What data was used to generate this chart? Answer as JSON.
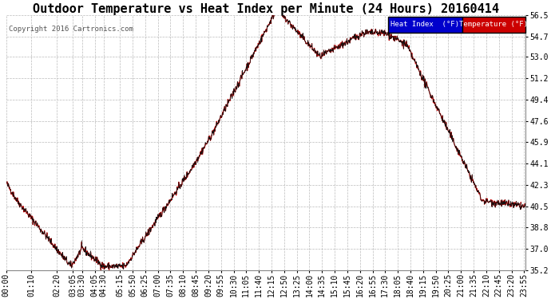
{
  "title": "Outdoor Temperature vs Heat Index per Minute (24 Hours) 20160414",
  "copyright": "Copyright 2016 Cartronics.com",
  "ylim": [
    35.2,
    56.5
  ],
  "yticks": [
    35.2,
    37.0,
    38.8,
    40.5,
    42.3,
    44.1,
    45.9,
    47.6,
    49.4,
    51.2,
    53.0,
    54.7,
    56.5
  ],
  "bg_color": "#ffffff",
  "plot_bg_color": "#ffffff",
  "grid_color": "#bbbbbb",
  "line_color": "#cc0000",
  "heat_index_legend_bg": "#0000cc",
  "temp_legend_bg": "#cc0000",
  "legend_text_color": "#ffffff",
  "title_fontsize": 11,
  "tick_fontsize": 7,
  "n_minutes": 1440,
  "x_tick_labels": [
    "00:00",
    "01:10",
    "02:20",
    "03:05",
    "03:30",
    "04:05",
    "04:30",
    "05:15",
    "05:50",
    "06:25",
    "07:00",
    "07:35",
    "08:10",
    "08:45",
    "09:20",
    "09:55",
    "10:30",
    "11:05",
    "11:40",
    "12:15",
    "12:50",
    "13:25",
    "14:00",
    "14:35",
    "15:10",
    "15:45",
    "16:20",
    "16:55",
    "17:30",
    "18:05",
    "18:40",
    "19:15",
    "19:50",
    "20:25",
    "21:00",
    "21:35",
    "22:10",
    "22:45",
    "23:20",
    "23:55"
  ]
}
